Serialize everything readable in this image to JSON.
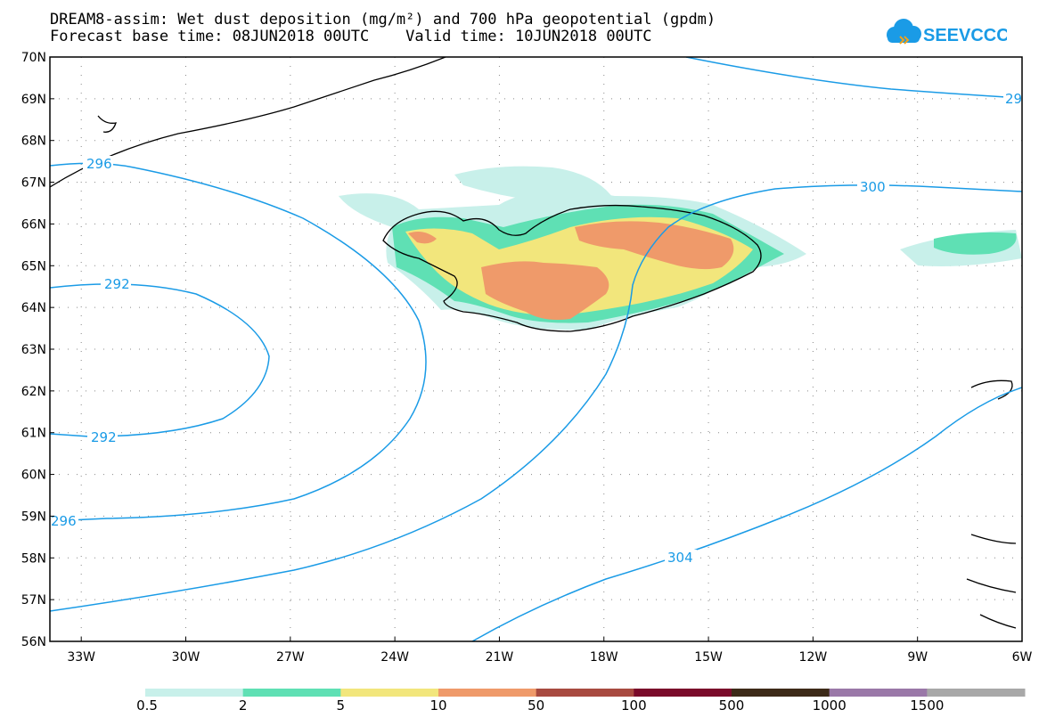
{
  "title_line1": "DREAM8-assim: Wet dust deposition (mg/m²) and 700 hPa geopotential (gpdm)",
  "title_line2": "Forecast base time: 08JUN2018 00UTC    Valid time: 10JUN2018 00UTC",
  "logo_text": "SEEVCCC",
  "lat_labels": [
    "70N",
    "69N",
    "68N",
    "67N",
    "66N",
    "65N",
    "64N",
    "63N",
    "62N",
    "61N",
    "60N",
    "59N",
    "58N",
    "57N",
    "56N"
  ],
  "lon_labels": [
    "33W",
    "30W",
    "27W",
    "24W",
    "21W",
    "18W",
    "15W",
    "12W",
    "9W",
    "6W"
  ],
  "contour_labels": [
    "296",
    "292",
    "292",
    "296",
    "300",
    "304",
    "29"
  ],
  "legend": {
    "labels": [
      "0.5",
      "2",
      "5",
      "10",
      "50",
      "100",
      "500",
      "1000",
      "1500"
    ],
    "colors": [
      "#c8f0ea",
      "#5fe0b4",
      "#f2e67c",
      "#ef9a6a",
      "#a84a40",
      "#7a0a2a",
      "#3d2a18",
      "#9a78a8",
      "#a8a8a8"
    ]
  },
  "colors": {
    "contour": "#1a9be6",
    "coast": "#000000",
    "logo": "#1a9be6"
  }
}
